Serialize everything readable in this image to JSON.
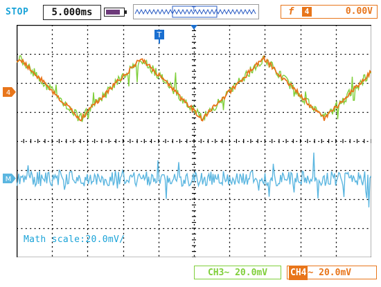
{
  "status": {
    "run_state": "STOP",
    "timebase": "5.000ms"
  },
  "trigger": {
    "edge_symbol": "f",
    "source": "4",
    "level": "0.00V",
    "marker": "T"
  },
  "markers": {
    "ch4_marker": "4",
    "math_marker": "M"
  },
  "math": {
    "scale_text": "Math scale:20.0mV/"
  },
  "channels": {
    "ch3_label": "CH3~ 20.0mV",
    "ch4_prefix": "CH4",
    "ch4_scale": "~ 20.0mV"
  },
  "colors": {
    "ch3": "#7fcf3a",
    "ch4": "#e8751a",
    "math": "#5bb6e0",
    "accent": "#1aa3d8",
    "grid": "#000000",
    "overview": "#2a5cc4"
  }
}
